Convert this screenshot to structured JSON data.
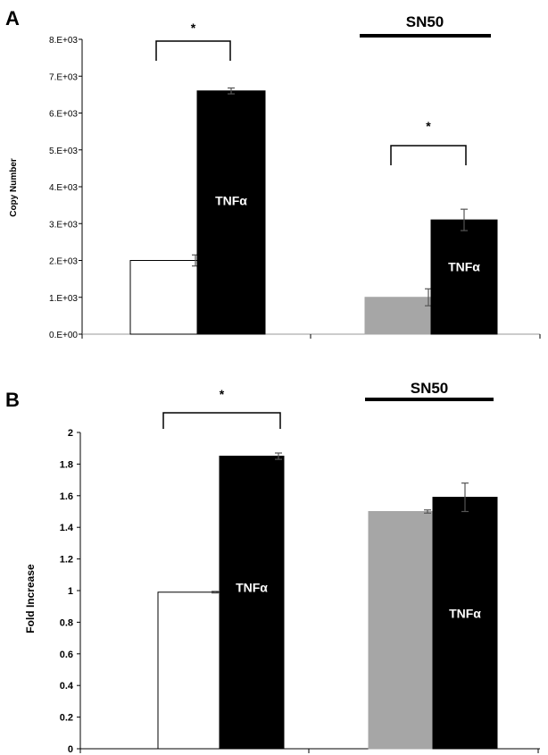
{
  "chart_data": [
    {
      "panel": "A",
      "type": "bar",
      "ylabel": "Copy Number",
      "ylim": [
        0,
        8000
      ],
      "yticks": [
        "0.E+00",
        "1.E+03",
        "2.E+03",
        "3.E+03",
        "4.E+03",
        "5.E+03",
        "6.E+03",
        "7.E+03",
        "8.E+03"
      ],
      "group_label": "SN50",
      "bar_label": "TNFα",
      "significance": "*",
      "bars": [
        {
          "group": 0,
          "color": "#ffffff",
          "value": 2000,
          "error": 150,
          "label": ""
        },
        {
          "group": 0,
          "color": "#000000",
          "value": 6600,
          "error": 80,
          "label": "TNFα"
        },
        {
          "group": 1,
          "color": "#a6a6a6",
          "value": 1000,
          "error": 230,
          "label": ""
        },
        {
          "group": 1,
          "color": "#000000",
          "value": 3100,
          "error": 290,
          "label": "TNFα"
        }
      ]
    },
    {
      "panel": "B",
      "type": "bar",
      "ylabel": "Fold Increase",
      "ylim": [
        0,
        2
      ],
      "yticks": [
        "0",
        "0.2",
        "0.4",
        "0.6",
        "0.8",
        "1",
        "1.2",
        "1.4",
        "1.6",
        "1.8",
        "2"
      ],
      "group_label": "SN50",
      "bar_label": "TNFα",
      "significance": "*",
      "bars": [
        {
          "group": 0,
          "color": "#ffffff",
          "value": 0.99,
          "error": 0.005,
          "label": ""
        },
        {
          "group": 0,
          "color": "#000000",
          "value": 1.85,
          "error": 0.02,
          "label": "TNFα"
        },
        {
          "group": 1,
          "color": "#a6a6a6",
          "value": 1.5,
          "error": 0.01,
          "label": ""
        },
        {
          "group": 1,
          "color": "#000000",
          "value": 1.59,
          "error": 0.09,
          "label": "TNFα"
        }
      ]
    }
  ]
}
